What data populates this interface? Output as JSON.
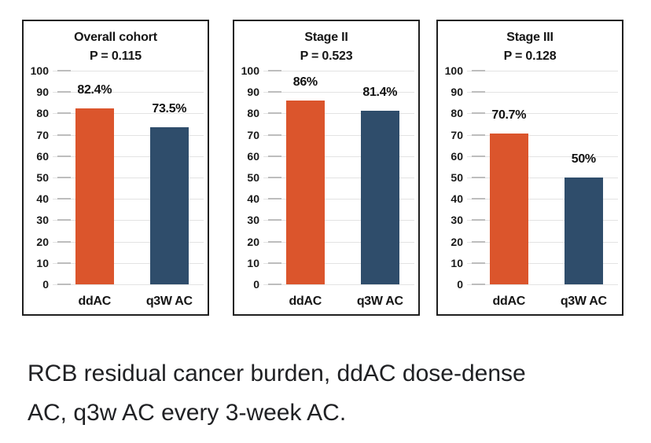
{
  "colors": {
    "ddac_bar": "#DB552C",
    "q3w_bar": "#2F4D6B",
    "gridline": "#E3E3E3",
    "tick_dash": "#BDBDBD",
    "panel_border": "#1F1F1F",
    "chart_text": "#151515",
    "caption_text": "#202124",
    "background": "#FFFFFF"
  },
  "caption": {
    "text": "RCB residual cancer burden, ddAC dose-dense AC, q3w AC every 3-week AC.",
    "lines": [
      "RCB residual cancer burden, ddAC dose-dense",
      "AC, q3w AC every 3-week AC."
    ]
  },
  "chart_data": [
    {
      "type": "bar",
      "title": "Overall cohort",
      "subtitle": "P = 0.115",
      "categories": [
        "ddAC",
        "q3W AC"
      ],
      "values": [
        82.4,
        73.5
      ],
      "value_labels": [
        "82.4%",
        "73.5%"
      ],
      "bar_colors": [
        "#DB552C",
        "#2F4D6B"
      ],
      "ylabel": "",
      "xlabel": "",
      "ylim": [
        0,
        100
      ],
      "yticks": [
        100,
        90,
        80,
        70,
        60,
        50,
        40,
        30,
        20,
        10,
        0
      ],
      "grid": true,
      "legend": "none"
    },
    {
      "type": "bar",
      "title": "Stage II",
      "subtitle": "P = 0.523",
      "categories": [
        "ddAC",
        "q3W AC"
      ],
      "values": [
        86,
        81.4
      ],
      "value_labels": [
        "86%",
        "81.4%"
      ],
      "bar_colors": [
        "#DB552C",
        "#2F4D6B"
      ],
      "ylabel": "",
      "xlabel": "",
      "ylim": [
        0,
        100
      ],
      "yticks": [
        100,
        90,
        80,
        70,
        60,
        50,
        40,
        30,
        20,
        10,
        0
      ],
      "grid": true,
      "legend": "none"
    },
    {
      "type": "bar",
      "title": "Stage III",
      "subtitle": "P = 0.128",
      "categories": [
        "ddAC",
        "q3W AC"
      ],
      "values": [
        70.7,
        50
      ],
      "value_labels": [
        "70.7%",
        "50%"
      ],
      "bar_colors": [
        "#DB552C",
        "#2F4D6B"
      ],
      "ylabel": "",
      "xlabel": "",
      "ylim": [
        0,
        100
      ],
      "yticks": [
        100,
        90,
        80,
        70,
        60,
        50,
        40,
        30,
        20,
        10,
        0
      ],
      "grid": true,
      "legend": "none"
    }
  ]
}
